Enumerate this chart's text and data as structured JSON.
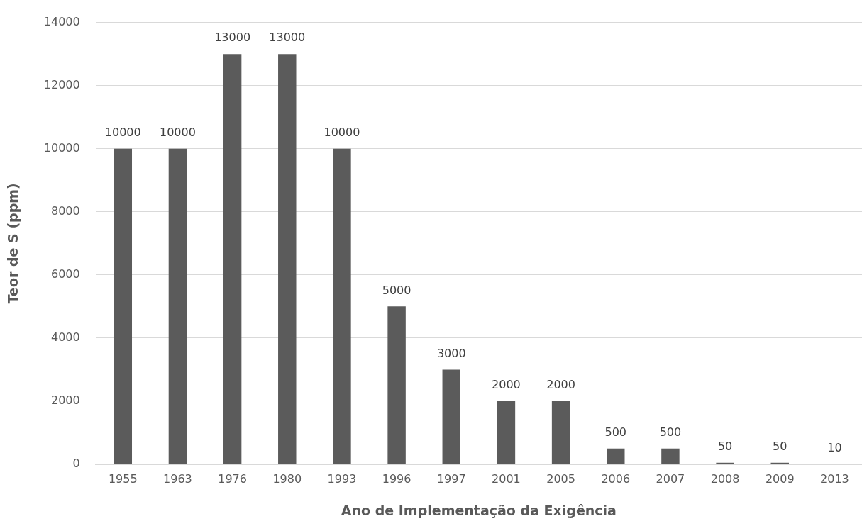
{
  "chart_data": {
    "type": "bar",
    "xlabel": "Ano de Implementação da Exigência",
    "ylabel": "Teor de S (ppm)",
    "categories": [
      "1955",
      "1963",
      "1976",
      "1980",
      "1993",
      "1996",
      "1997",
      "2001",
      "2005",
      "2006",
      "2007",
      "2008",
      "2009",
      "2013"
    ],
    "values": [
      10000,
      10000,
      13000,
      13000,
      10000,
      5000,
      3000,
      2000,
      2000,
      500,
      500,
      50,
      50,
      10
    ],
    "color": "#5b5b5b",
    "ylim": [
      0,
      14000
    ],
    "yticks": [
      0,
      2000,
      4000,
      6000,
      8000,
      10000,
      12000,
      14000
    ],
    "grid": "y",
    "data_labels": true,
    "legend": false
  }
}
